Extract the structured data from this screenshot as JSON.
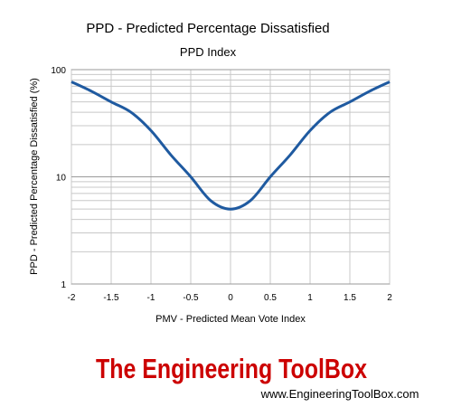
{
  "chart_data": {
    "type": "line",
    "title": "PPD - Predicted Percentage Dissatisfied",
    "subtitle": "PPD Index",
    "xlabel": "PMV - Predicted Mean Vote Index",
    "ylabel": "PPD - Predicted Percentage Dissatisfied (%)",
    "xlim": [
      -2,
      2
    ],
    "ylim": [
      1,
      100
    ],
    "yscale": "log",
    "grid": true,
    "x_ticks": [
      "-2",
      "-1.5",
      "-1",
      "-0.5",
      "0",
      "0.5",
      "1",
      "1.5",
      "2"
    ],
    "y_ticks": [
      "1",
      "10",
      "100"
    ],
    "series": [
      {
        "color": "#1f5aa0",
        "x": [
          -2.0,
          -1.75,
          -1.5,
          -1.25,
          -1.0,
          -0.75,
          -0.5,
          -0.25,
          0.0,
          0.25,
          0.5,
          0.75,
          1.0,
          1.25,
          1.5,
          1.75,
          2.0
        ],
        "y": [
          77,
          63,
          50,
          40,
          27,
          16,
          10,
          6,
          5,
          6,
          10,
          16,
          27,
          40,
          50,
          63,
          77
        ]
      }
    ]
  },
  "brand": {
    "name": "The Engineering ToolBox",
    "url": "www.EngineeringToolBox.com",
    "color": "#cc0000"
  }
}
